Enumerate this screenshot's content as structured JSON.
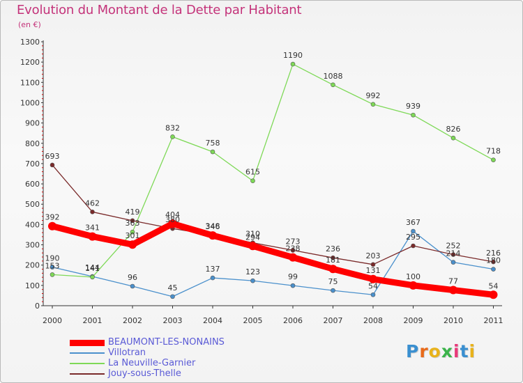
{
  "title": "Evolution du Montant de la Dette par Habitant",
  "subtitle": "(en €)",
  "logo": {
    "text": "Proxiti",
    "colors": [
      "#3a8fd0",
      "#e86a1a",
      "#e8b21a",
      "#3ab34a",
      "#e83a7a",
      "#3a8fd0",
      "#e8b21a"
    ]
  },
  "chart_data": {
    "type": "line",
    "x": [
      "2000",
      "2001",
      "2002",
      "2003",
      "2004",
      "2005",
      "2006",
      "2007",
      "2008",
      "2009",
      "2010",
      "2011"
    ],
    "ylim": [
      0,
      1300
    ],
    "yticks": [
      0,
      100,
      200,
      300,
      400,
      500,
      600,
      700,
      800,
      900,
      1000,
      1100,
      1200,
      1300
    ],
    "grid": false,
    "legend_position": "bottom-left",
    "series": [
      {
        "name": "BEAUMONT-LES-NONAINS",
        "color": "#ff0000",
        "values": [
          392,
          341,
          301,
          404,
          346,
          294,
          238,
          181,
          131,
          100,
          77,
          54
        ],
        "labels": [
          "392",
          "341",
          "301",
          "404",
          "346",
          "294",
          "238",
          "181",
          "131",
          "100",
          "77",
          "54"
        ]
      },
      {
        "name": "Villotran",
        "color": "#4a90cc",
        "values": [
          190,
          144,
          96,
          45,
          137,
          123,
          99,
          75,
          54,
          367,
          214,
          180
        ],
        "labels": [
          "190",
          "144",
          "96",
          "45",
          "137",
          "123",
          "99",
          "75",
          "54",
          "367",
          "214",
          "180"
        ]
      },
      {
        "name": "La Neuville-Garnier",
        "color": "#7ed957",
        "values": [
          153,
          141,
          363,
          832,
          758,
          615,
          1190,
          1088,
          992,
          939,
          826,
          718
        ],
        "labels": [
          "153",
          "141",
          "363",
          "832",
          "758",
          "615",
          "1190",
          "1088",
          "992",
          "939",
          "826",
          "718"
        ]
      },
      {
        "name": "Jouy-sous-Thelle",
        "color": "#7a2a2a",
        "values": [
          693,
          462,
          419,
          380,
          348,
          310,
          273,
          236,
          203,
          295,
          252,
          216
        ],
        "labels": [
          "693",
          "462",
          "419",
          "380",
          "348",
          "310",
          "273",
          "236",
          "203",
          "295",
          "252",
          "216"
        ]
      }
    ]
  }
}
